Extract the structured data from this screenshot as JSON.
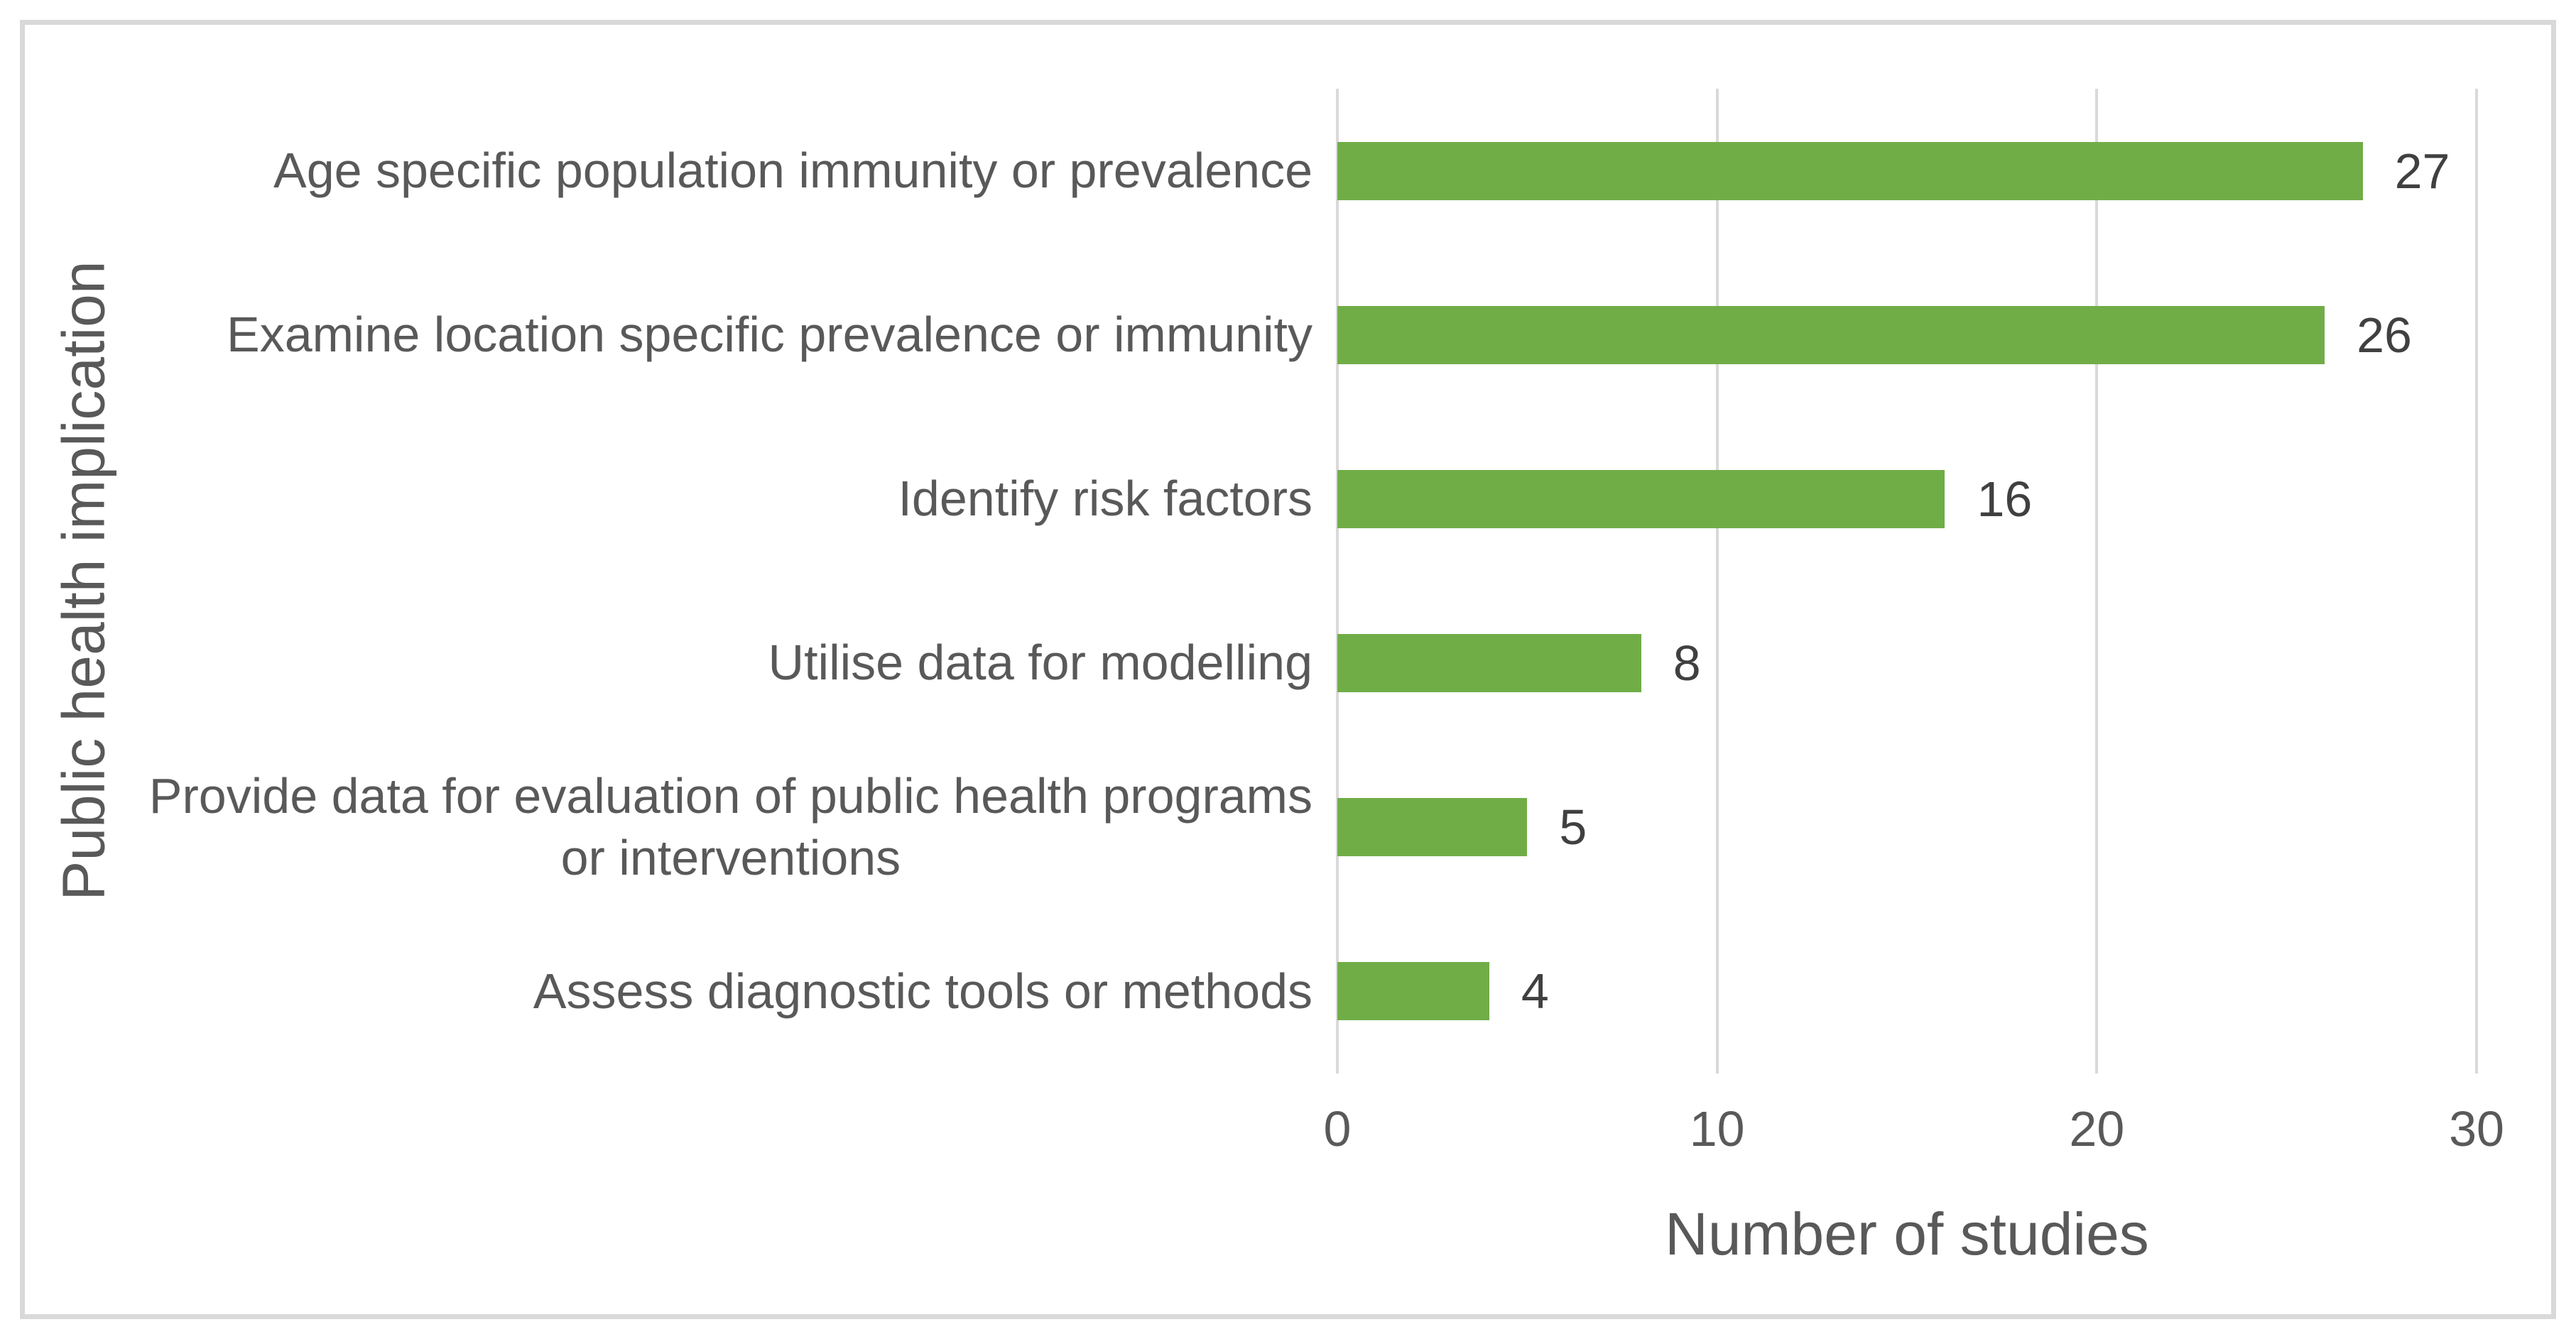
{
  "chart_data": {
    "type": "bar",
    "orientation": "horizontal",
    "title": "",
    "xlabel": "Number of studies",
    "ylabel": "Public health implication",
    "categories": [
      "Age specific population immunity or prevalence",
      "Examine location specific prevalence or immunity",
      "Identify risk factors",
      "Utilise data for modelling",
      "Provide data for evaluation of public health programs\nor interventions",
      "Assess diagnostic tools or methods"
    ],
    "values": [
      27,
      26,
      16,
      8,
      5,
      4
    ],
    "data_labels_shown": true,
    "x_ticks": [
      "0",
      "10",
      "20",
      "30"
    ],
    "x_tick_positions_pct": [
      0,
      33.3333,
      66.6667,
      100
    ],
    "xlim": [
      0,
      30
    ],
    "grid": "vertical-gridlines",
    "legend": "none",
    "colors": {
      "bar": "#70AD47",
      "gridline": "#D9D9D9",
      "border": "#D9D9D9",
      "axis_text": "#595959",
      "data_label_text": "#404040",
      "background": "#FFFFFF"
    }
  }
}
